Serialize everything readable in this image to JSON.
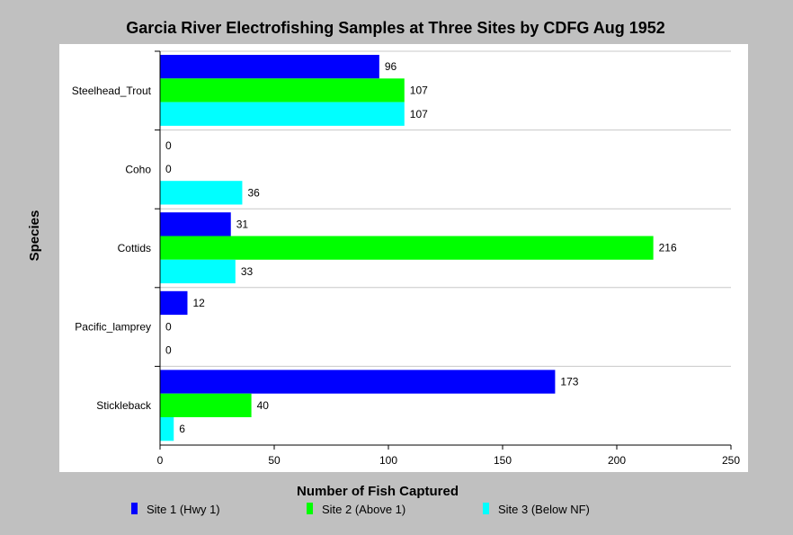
{
  "chart_data": {
    "type": "bar",
    "orientation": "horizontal",
    "title": "Garcia River Electrofishing Samples at Three Sites by CDFG Aug 1952",
    "xlabel": "Number of Fish Captured",
    "ylabel": "Species",
    "categories": [
      "Steelhead_Trout",
      "Coho",
      "Cottids",
      "Pacific_lamprey",
      "Stickleback"
    ],
    "series": [
      {
        "name": "Site 1 (Hwy 1)",
        "color": "#0000ff",
        "values": [
          96,
          0,
          31,
          12,
          173
        ]
      },
      {
        "name": "Site 2 (Above 1)",
        "color": "#00ff00",
        "values": [
          107,
          0,
          216,
          0,
          40
        ]
      },
      {
        "name": "Site 3 (Below NF)",
        "color": "#00ffff",
        "values": [
          107,
          36,
          33,
          0,
          6
        ]
      }
    ],
    "xlim": [
      0,
      250
    ],
    "xticks": [
      0,
      50,
      100,
      150,
      200,
      250
    ],
    "grid": "horizontal separators between categories",
    "legend_position": "bottom",
    "show_value_labels": true
  }
}
